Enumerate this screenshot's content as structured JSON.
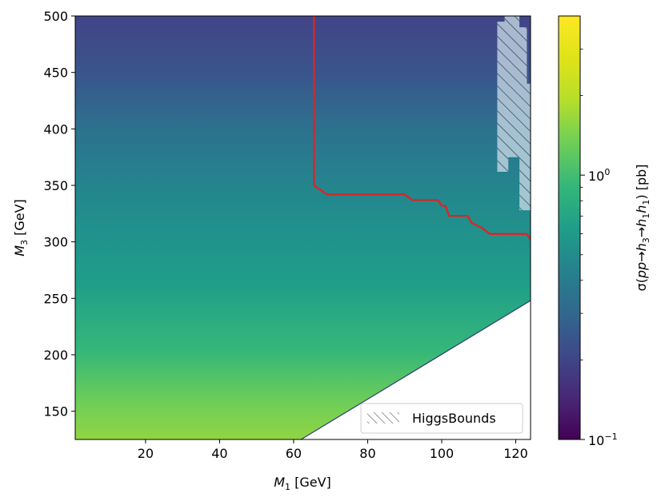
{
  "chart_data": {
    "type": "heatmap",
    "title": "",
    "xlabel": {
      "main": "M",
      "sub": "1",
      "unit": " [GeV]"
    },
    "ylabel": {
      "main": "M",
      "sub": "3",
      "unit": " [GeV]"
    },
    "xlim": [
      1,
      124
    ],
    "ylim": [
      125,
      500
    ],
    "x_ticks": [
      20,
      40,
      60,
      80,
      100,
      120
    ],
    "y_ticks": [
      150,
      200,
      250,
      300,
      350,
      400,
      450,
      500
    ],
    "colorbar": {
      "label_prefix": "σ(",
      "label_math": "pp→h",
      "label_s1": "3",
      "label_arrow": "→h",
      "label_s2": "1",
      "label_h": "h",
      "label_s3": "1",
      "label_suffix": ") [pb]",
      "scale": "log",
      "range": [
        0.1,
        4.0
      ],
      "colormap": "viridis",
      "ticks": [
        {
          "value": 0.1,
          "base": "10",
          "exp": "−1"
        },
        {
          "value": 1.0,
          "base": "10",
          "exp": "0"
        }
      ]
    },
    "cross_section_grid": {
      "M3": [
        125,
        150,
        175,
        200,
        225,
        250,
        275,
        300,
        325,
        350,
        375,
        400,
        425,
        450,
        475,
        500
      ],
      "sigma_pb": [
        2.3,
        2.0,
        1.65,
        1.4,
        1.2,
        1.02,
        0.88,
        0.76,
        0.66,
        0.58,
        0.5,
        0.44,
        0.38,
        0.33,
        0.29,
        0.25
      ]
    },
    "kinematic_boundary": {
      "description_line": "M3 = 2 M1",
      "points": [
        [
          62,
          125
        ],
        [
          124,
          248
        ]
      ]
    },
    "exclusion_contour": {
      "color": "#d62728",
      "points": [
        [
          65.5,
          500
        ],
        [
          65.5,
          350
        ],
        [
          69,
          342
        ],
        [
          90,
          342
        ],
        [
          92,
          337
        ],
        [
          99,
          337
        ],
        [
          100,
          332
        ],
        [
          101,
          332
        ],
        [
          102,
          323
        ],
        [
          107,
          323
        ],
        [
          108,
          317
        ],
        [
          111,
          312
        ],
        [
          113,
          307
        ],
        [
          123,
          307
        ],
        [
          124,
          302
        ]
      ]
    },
    "higgsbounds_region": {
      "points": [
        [
          115,
          495
        ],
        [
          117,
          495
        ],
        [
          117,
          500
        ],
        [
          121,
          500
        ],
        [
          121,
          490
        ],
        [
          123,
          490
        ],
        [
          123,
          440
        ],
        [
          124,
          440
        ],
        [
          124,
          328
        ],
        [
          121,
          328
        ],
        [
          121,
          375
        ],
        [
          118,
          375
        ],
        [
          118,
          362
        ],
        [
          115,
          362
        ]
      ]
    },
    "legend": {
      "entries": [
        {
          "label": "HiggsBounds",
          "style": "hatch"
        }
      ],
      "position": "lower-right"
    }
  }
}
